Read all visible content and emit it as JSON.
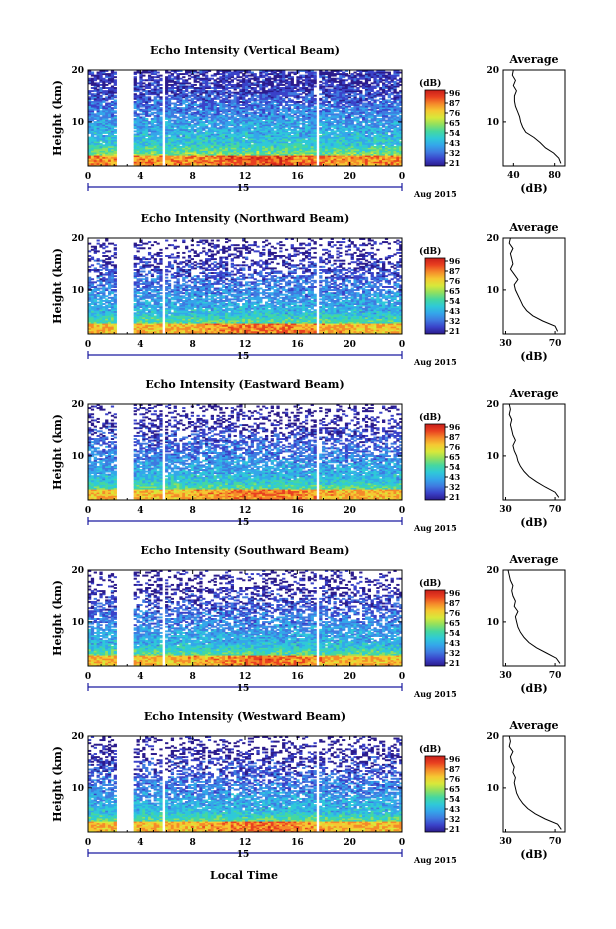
{
  "figure": {
    "xlabel": "Local Time",
    "date_label": "Aug 2015",
    "day_label": "15"
  },
  "chart_data": [
    {
      "type": "heatmap",
      "title": "Echo Intensity (Vertical Beam)",
      "ylabel": "Height (km)",
      "x_ticks": [
        "0",
        "4",
        "8",
        "12",
        "16",
        "20",
        "0"
      ],
      "xlim": [
        0,
        24
      ],
      "y_ticks": [
        "10",
        "20"
      ],
      "ylim": [
        1.5,
        20
      ],
      "colorbar": {
        "unit": "(dB)",
        "ticks": [
          "96",
          "87",
          "76",
          "65",
          "54",
          "43",
          "32",
          "21"
        ]
      },
      "gaps_hours": [
        [
          2.1,
          3.5
        ],
        [
          5.7,
          5.95
        ],
        [
          17.5,
          17.75
        ]
      ],
      "profile": {
        "title": "Average",
        "xlabel": "(dB)",
        "x_ticks": [
          "40",
          "80"
        ],
        "xlim": [
          30,
          90
        ],
        "height_km": [
          2,
          3,
          4,
          5,
          6,
          7,
          8,
          9,
          10,
          11,
          12,
          13,
          14,
          15,
          16,
          17,
          18,
          19,
          20
        ],
        "mean_db": [
          86,
          84,
          79,
          71,
          66,
          60,
          52,
          49,
          47,
          46,
          44,
          42,
          41,
          41,
          43,
          40,
          42,
          39,
          40
        ]
      }
    },
    {
      "type": "heatmap",
      "title": "Echo Intensity (Northward Beam)",
      "ylabel": "Height (km)",
      "x_ticks": [
        "0",
        "4",
        "8",
        "12",
        "16",
        "20",
        "0"
      ],
      "xlim": [
        0,
        24
      ],
      "y_ticks": [
        "10",
        "20"
      ],
      "ylim": [
        1.5,
        20
      ],
      "colorbar": {
        "unit": "(dB)",
        "ticks": [
          "96",
          "87",
          "76",
          "65",
          "54",
          "43",
          "32",
          "21"
        ]
      },
      "gaps_hours": [
        [
          2.1,
          3.5
        ],
        [
          5.7,
          5.95
        ],
        [
          17.5,
          17.75
        ]
      ],
      "profile": {
        "title": "Average",
        "xlabel": "(dB)",
        "x_ticks": [
          "30",
          "70"
        ],
        "xlim": [
          28,
          78
        ],
        "height_km": [
          2,
          3,
          4,
          5,
          6,
          7,
          8,
          9,
          10,
          11,
          12,
          13,
          14,
          15,
          16,
          17,
          18,
          19,
          20
        ],
        "mean_db": [
          72,
          70,
          60,
          52,
          47,
          44,
          42,
          40,
          38,
          37,
          40,
          37,
          34,
          36,
          35,
          34,
          36,
          33,
          34
        ]
      }
    },
    {
      "type": "heatmap",
      "title": "Echo Intensity (Eastward Beam)",
      "ylabel": "Height (km)",
      "x_ticks": [
        "0",
        "4",
        "8",
        "12",
        "16",
        "20",
        "0"
      ],
      "xlim": [
        0,
        24
      ],
      "y_ticks": [
        "10",
        "20"
      ],
      "ylim": [
        1.5,
        20
      ],
      "colorbar": {
        "unit": "(dB)",
        "ticks": [
          "96",
          "87",
          "76",
          "65",
          "54",
          "43",
          "32",
          "21"
        ]
      },
      "gaps_hours": [
        [
          2.1,
          3.5
        ],
        [
          5.7,
          5.95
        ],
        [
          17.5,
          17.75
        ]
      ],
      "profile": {
        "title": "Average",
        "xlabel": "(dB)",
        "x_ticks": [
          "30",
          "70"
        ],
        "xlim": [
          28,
          78
        ],
        "height_km": [
          2,
          3,
          4,
          5,
          6,
          7,
          8,
          9,
          10,
          11,
          12,
          13,
          14,
          15,
          16,
          17,
          18,
          19,
          20
        ],
        "mean_db": [
          73,
          70,
          62,
          55,
          49,
          45,
          42,
          40,
          39,
          37,
          36,
          38,
          36,
          35,
          34,
          35,
          33,
          34,
          33
        ]
      }
    },
    {
      "type": "heatmap",
      "title": "Echo Intensity (Southward Beam)",
      "ylabel": "Height (km)",
      "x_ticks": [
        "0",
        "4",
        "8",
        "12",
        "16",
        "20",
        "0"
      ],
      "xlim": [
        0,
        24
      ],
      "y_ticks": [
        "10",
        "20"
      ],
      "ylim": [
        1.5,
        20
      ],
      "colorbar": {
        "unit": "(dB)",
        "ticks": [
          "96",
          "87",
          "76",
          "65",
          "54",
          "43",
          "32",
          "21"
        ]
      },
      "gaps_hours": [
        [
          2.1,
          3.5
        ],
        [
          5.7,
          5.95
        ],
        [
          17.5,
          17.75
        ]
      ],
      "profile": {
        "title": "Average",
        "xlabel": "(dB)",
        "x_ticks": [
          "30",
          "70"
        ],
        "xlim": [
          28,
          78
        ],
        "height_km": [
          2,
          3,
          4,
          5,
          6,
          7,
          8,
          9,
          10,
          11,
          12,
          13,
          14,
          15,
          16,
          17,
          18,
          19,
          20
        ],
        "mean_db": [
          74,
          71,
          63,
          55,
          49,
          45,
          42,
          40,
          39,
          38,
          40,
          37,
          38,
          36,
          35,
          36,
          34,
          33,
          32
        ]
      }
    },
    {
      "type": "heatmap",
      "title": "Echo Intensity (Westward Beam)",
      "ylabel": "Height (km)",
      "x_ticks": [
        "0",
        "4",
        "8",
        "12",
        "16",
        "20",
        "0"
      ],
      "xlim": [
        0,
        24
      ],
      "y_ticks": [
        "10",
        "20"
      ],
      "ylim": [
        1.5,
        20
      ],
      "colorbar": {
        "unit": "(dB)",
        "ticks": [
          "96",
          "87",
          "76",
          "65",
          "54",
          "43",
          "32",
          "21"
        ]
      },
      "gaps_hours": [
        [
          2.1,
          3.5
        ],
        [
          5.7,
          5.95
        ],
        [
          17.5,
          17.75
        ]
      ],
      "profile": {
        "title": "Average",
        "xlabel": "(dB)",
        "x_ticks": [
          "30",
          "70"
        ],
        "xlim": [
          28,
          78
        ],
        "height_km": [
          2,
          3,
          4,
          5,
          6,
          7,
          8,
          9,
          10,
          11,
          12,
          13,
          14,
          15,
          16,
          17,
          18,
          19,
          20
        ],
        "mean_db": [
          75,
          72,
          62,
          54,
          48,
          44,
          41,
          39,
          38,
          37,
          38,
          36,
          37,
          35,
          34,
          36,
          33,
          34,
          33
        ]
      }
    }
  ],
  "colors": {
    "colormap": [
      "#2b1b8c",
      "#3a42c9",
      "#3f7ae0",
      "#34a6ea",
      "#2fc9d8",
      "#45d7a0",
      "#8fe060",
      "#d8e83a",
      "#f5c832",
      "#f58a2a",
      "#e94020",
      "#c81e1a"
    ],
    "axis": "#000000",
    "time_bar": "#1a1aa0",
    "background": "#ffffff"
  }
}
